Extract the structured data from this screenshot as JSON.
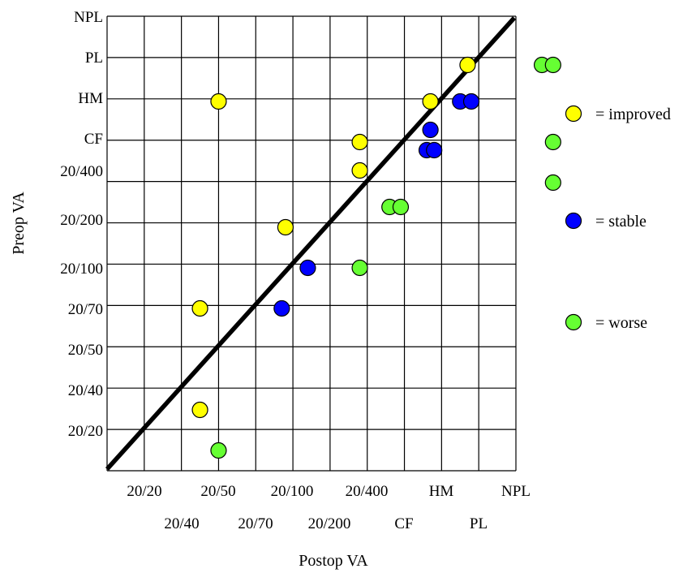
{
  "chart_data": {
    "type": "scatter",
    "xlabel": "Postop VA",
    "ylabel": "Preop VA",
    "x_ticks": [
      "20/20",
      "20/40",
      "20/50",
      "20/70",
      "20/100",
      "20/200",
      "20/400",
      "CF",
      "HM",
      "PL",
      "NPL"
    ],
    "y_ticks": [
      "20/20",
      "20/40",
      "20/50",
      "20/70",
      "20/100",
      "20/200",
      "20/400",
      "CF",
      "HM",
      "PL",
      "NPL"
    ],
    "grid": true,
    "reference_line": "y = x",
    "legend": {
      "placement": "right",
      "entries": [
        {
          "label": "= improved",
          "color": "#ffff00"
        },
        {
          "label": "= stable",
          "color": "#0000ff"
        },
        {
          "label": "= worse",
          "color": "#66ff33"
        }
      ]
    },
    "series": [
      {
        "name": "= improved",
        "color": "#ffff00",
        "points": [
          {
            "x": 2.5,
            "y": 0.5
          },
          {
            "x": 2.5,
            "y": 3
          },
          {
            "x": 3,
            "y": 8.1
          },
          {
            "x": 4.8,
            "y": 5
          },
          {
            "x": 6.8,
            "y": 6.4
          },
          {
            "x": 6.8,
            "y": 7.1
          },
          {
            "x": 8.7,
            "y": 8.1
          },
          {
            "x": 9.7,
            "y": 9
          }
        ]
      },
      {
        "name": "= stable",
        "color": "#0000ff",
        "points": [
          {
            "x": 4.7,
            "y": 3
          },
          {
            "x": 5.4,
            "y": 4
          },
          {
            "x": 8.6,
            "y": 6.9
          },
          {
            "x": 8.8,
            "y": 6.9
          },
          {
            "x": 8.7,
            "y": 7.4
          },
          {
            "x": 9.5,
            "y": 8.1
          },
          {
            "x": 9.8,
            "y": 8.1
          }
        ]
      },
      {
        "name": "= worse",
        "color": "#66ff33",
        "points": [
          {
            "x": 3,
            "y": -0.5
          },
          {
            "x": 6.8,
            "y": 4
          },
          {
            "x": 7.6,
            "y": 5.5
          },
          {
            "x": 7.9,
            "y": 5.5
          },
          {
            "x": 11.7,
            "y": 9
          },
          {
            "x": 12,
            "y": 9
          },
          {
            "x": 12,
            "y": 7.1
          },
          {
            "x": 12,
            "y": 6.1
          }
        ]
      }
    ]
  }
}
